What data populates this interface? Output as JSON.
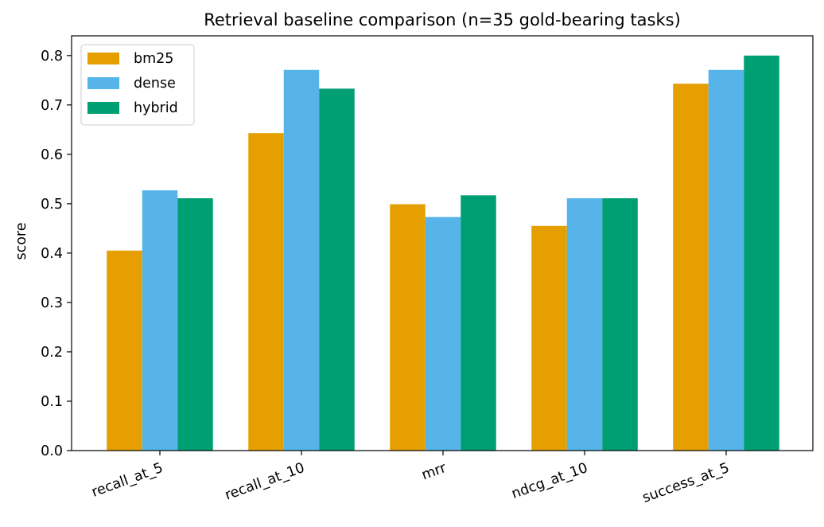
{
  "chart_data": {
    "type": "bar",
    "title": "Retrieval baseline comparison (n=35 gold-bearing tasks)",
    "xlabel": "",
    "ylabel": "score",
    "ylim": [
      0,
      0.84
    ],
    "yticks": [
      "0.0",
      "0.1",
      "0.2",
      "0.3",
      "0.4",
      "0.5",
      "0.6",
      "0.7",
      "0.8"
    ],
    "categories": [
      "recall_at_5",
      "recall_at_10",
      "mrr",
      "ndcg_at_10",
      "success_at_5"
    ],
    "series": [
      {
        "name": "bm25",
        "color": "#E69F00",
        "values": [
          0.405,
          0.643,
          0.499,
          0.455,
          0.743
        ]
      },
      {
        "name": "dense",
        "color": "#56B4E9",
        "values": [
          0.527,
          0.771,
          0.473,
          0.511,
          0.771
        ]
      },
      {
        "name": "hybrid",
        "color": "#009E73",
        "values": [
          0.511,
          0.733,
          0.517,
          0.511,
          0.8
        ]
      }
    ],
    "grid": false,
    "legend_position": "upper-left"
  }
}
